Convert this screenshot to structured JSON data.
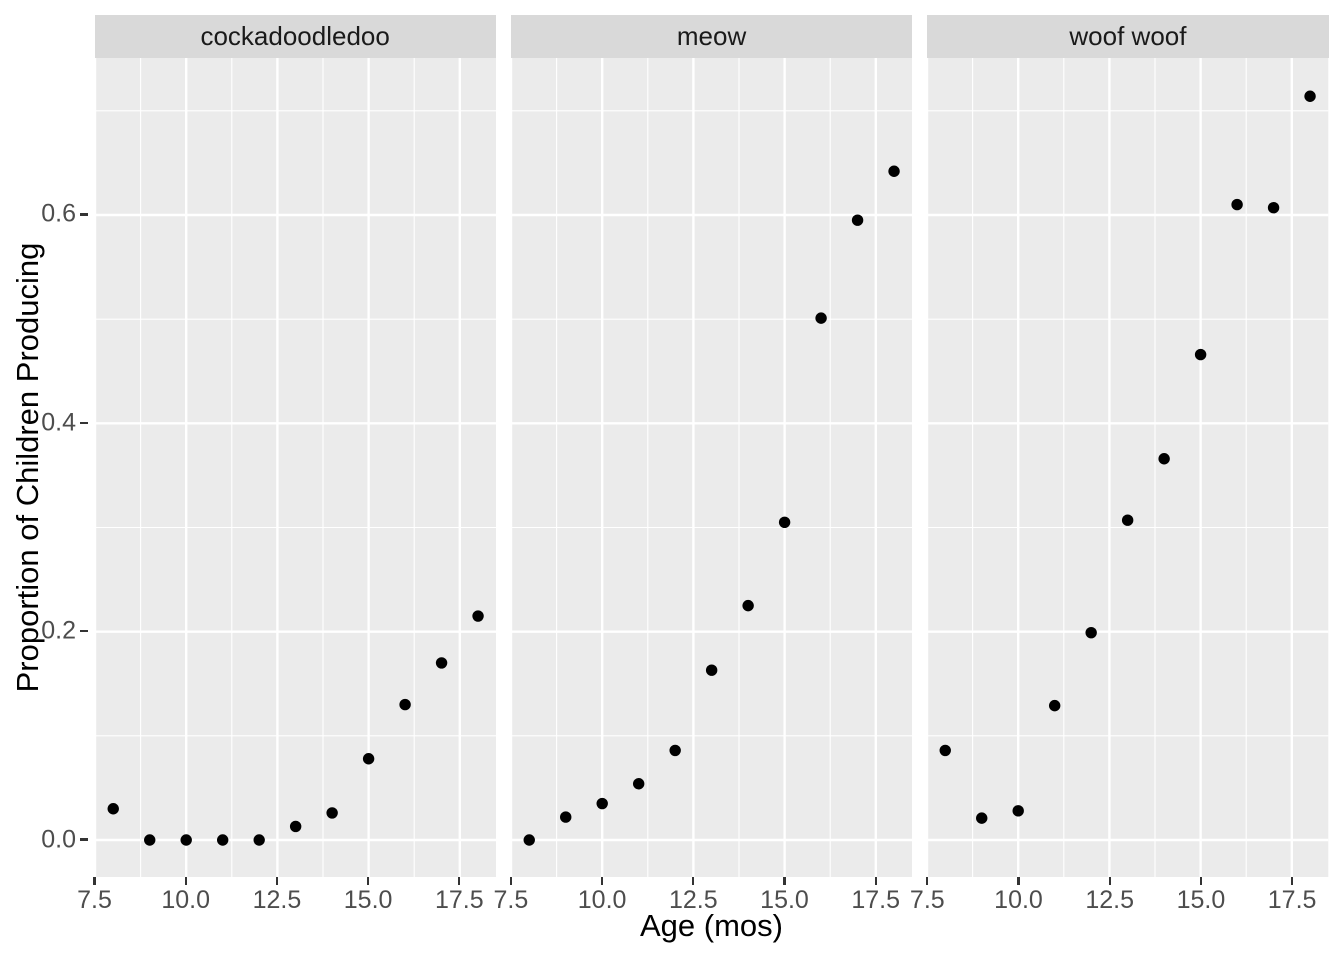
{
  "chart_data": {
    "type": "scatter",
    "faceted": true,
    "facet_labels": [
      "cockadoodledoo",
      "meow",
      "woof woof"
    ],
    "x_label": "Age (mos)",
    "y_label": "Proportion of Children Producing",
    "x_tick_labels": [
      "7.5",
      "10.0",
      "12.5",
      "15.0",
      "17.5"
    ],
    "x_tick_values": [
      7.5,
      10.0,
      12.5,
      15.0,
      17.5
    ],
    "x_minor_values": [
      8.75,
      11.25,
      13.75,
      16.25
    ],
    "y_tick_labels": [
      "0.0",
      "0.2",
      "0.4",
      "0.6"
    ],
    "y_tick_values": [
      0.0,
      0.2,
      0.4,
      0.6
    ],
    "y_minor_values": [
      0.1,
      0.3,
      0.5,
      0.7
    ],
    "xlim": [
      7.5,
      18.5
    ],
    "ylim": [
      -0.036,
      0.751
    ],
    "x": [
      8,
      9,
      10,
      11,
      12,
      13,
      14,
      15,
      16,
      17,
      18
    ],
    "series": [
      {
        "name": "cockadoodledoo",
        "values": [
          0.03,
          0.0,
          0.0,
          0.0,
          0.0,
          0.013,
          0.026,
          0.078,
          0.13,
          0.17,
          0.215
        ]
      },
      {
        "name": "meow",
        "values": [
          0.0,
          0.022,
          0.035,
          0.054,
          0.086,
          0.163,
          0.225,
          0.305,
          0.501,
          0.595,
          0.642
        ]
      },
      {
        "name": "woof woof",
        "values": [
          0.086,
          0.021,
          0.028,
          0.129,
          0.199,
          0.307,
          0.366,
          0.466,
          0.61,
          0.607,
          0.714
        ]
      }
    ],
    "grid": {
      "major": true,
      "minor": true
    },
    "legend": "none",
    "style": {
      "panel_background": "#ebebeb",
      "strip_background": "#d9d9d9",
      "gridline_color": "#ffffff",
      "point_color": "#000000",
      "tick_mark_color": "#333333",
      "tick_label_color": "#4d4d4d",
      "axis_title_color": "#000000",
      "strip_text_color": "#1a1a1a"
    }
  }
}
